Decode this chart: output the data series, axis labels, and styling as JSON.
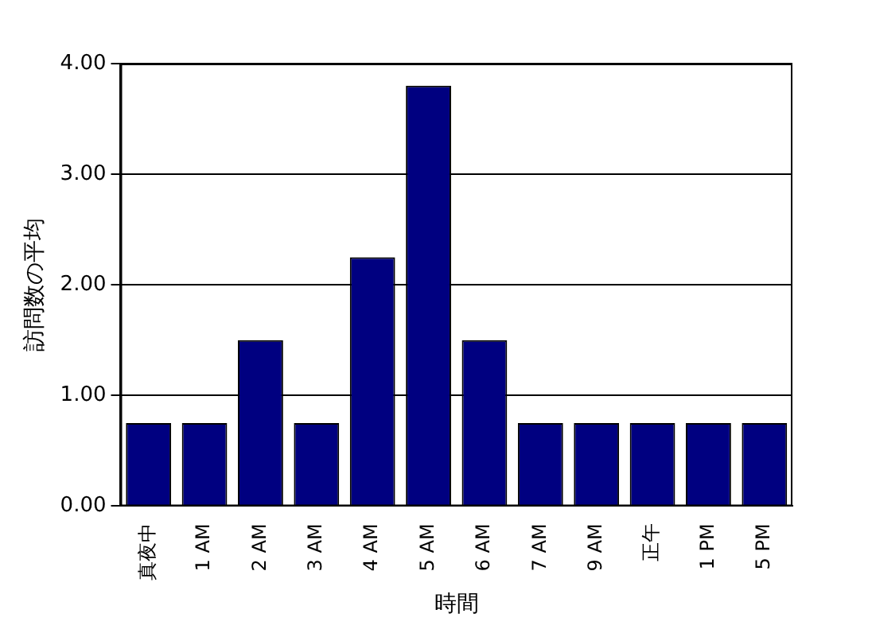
{
  "chart_data": {
    "type": "bar",
    "categories": [
      "真夜中",
      "1 AM",
      "2 AM",
      "3 AM",
      "4 AM",
      "5 AM",
      "6 AM",
      "7 AM",
      "9 AM",
      "正午",
      "1 PM",
      "5 PM"
    ],
    "values": [
      0.75,
      0.75,
      1.5,
      0.75,
      2.25,
      3.8,
      1.5,
      0.75,
      0.75,
      0.75,
      0.75,
      0.75
    ],
    "color": "#000080",
    "xlabel": "時間",
    "ylabel": "訪問数の平均",
    "ylim": [
      0,
      4
    ],
    "yticks": [
      {
        "value": 0,
        "label": "0.00"
      },
      {
        "value": 1,
        "label": "1.00"
      },
      {
        "value": 2,
        "label": "2.00"
      },
      {
        "value": 3,
        "label": "3.00"
      },
      {
        "value": 4,
        "label": "4.00"
      }
    ],
    "grid": "y",
    "legend": false
  }
}
